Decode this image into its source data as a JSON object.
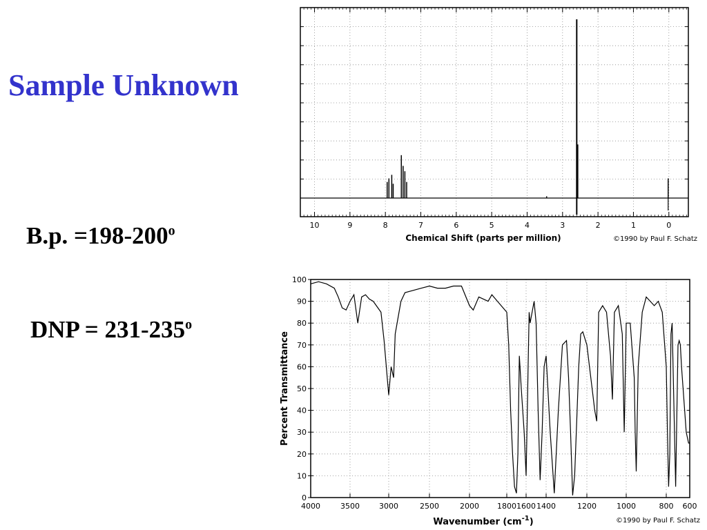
{
  "slide": {
    "title": "Sample Unknown",
    "bp_label": "B.p. =198-200",
    "bp_sup": "o",
    "dnp_label": "DNP = 231-235",
    "dnp_sup": "o"
  },
  "chart_data": [
    {
      "type": "line",
      "name": "nmr",
      "xlabel": "Chemical Shift (parts per million)",
      "ylabel": "",
      "credit": "©1990 by Paul F. Schatz",
      "x_ticks": [
        "10",
        "9",
        "8",
        "7",
        "6",
        "5",
        "4",
        "3",
        "2",
        "1",
        "0"
      ],
      "xlim": [
        10.4,
        -0.55
      ],
      "ylim": [
        -0.1,
        1.0
      ],
      "reversed_x": true,
      "grid": true,
      "peaks": [
        {
          "x": 7.95,
          "y": 0.09
        },
        {
          "x": 7.9,
          "y": 0.11
        },
        {
          "x": 7.82,
          "y": 0.13
        },
        {
          "x": 7.78,
          "y": 0.08
        },
        {
          "x": 7.55,
          "y": 0.24
        },
        {
          "x": 7.5,
          "y": 0.18
        },
        {
          "x": 7.45,
          "y": 0.15
        },
        {
          "x": 7.4,
          "y": 0.09
        },
        {
          "x": 3.45,
          "y": 0.01
        },
        {
          "x": 2.6,
          "y": 1.0
        },
        {
          "x": 2.57,
          "y": 0.3
        },
        {
          "x": 0.02,
          "y": 0.11
        }
      ]
    },
    {
      "type": "line",
      "name": "ir",
      "xlabel": "Wavenumber (cm-1)",
      "ylabel": "Percent Transmittance",
      "credit": "©1990 by Paul F. Schatz",
      "x_ticks": [
        "4000",
        "3500",
        "3000",
        "2500",
        "2000",
        "1800",
        "1600",
        "1400",
        "1200",
        "1000",
        "800",
        "600"
      ],
      "y_ticks": [
        "0",
        "10",
        "20",
        "30",
        "40",
        "50",
        "60",
        "70",
        "80",
        "90",
        "100"
      ],
      "ylim": [
        0,
        100
      ],
      "grid": true,
      "x": [
        4000,
        3900,
        3800,
        3700,
        3650,
        3600,
        3550,
        3500,
        3450,
        3400,
        3350,
        3300,
        3250,
        3200,
        3100,
        3060,
        3000,
        2970,
        2940,
        2920,
        2850,
        2800,
        2700,
        2600,
        2500,
        2400,
        2300,
        2200,
        2100,
        2000,
        1980,
        1950,
        1900,
        1880,
        1850,
        1800,
        1780,
        1760,
        1740,
        1720,
        1700,
        1685,
        1670,
        1650,
        1620,
        1600,
        1590,
        1580,
        1570,
        1560,
        1540,
        1520,
        1500,
        1480,
        1460,
        1440,
        1420,
        1400,
        1380,
        1360,
        1340,
        1320,
        1300,
        1290,
        1280,
        1270,
        1260,
        1250,
        1240,
        1230,
        1220,
        1200,
        1180,
        1160,
        1150,
        1140,
        1120,
        1100,
        1080,
        1070,
        1060,
        1040,
        1020,
        1010,
        1000,
        980,
        960,
        955,
        950,
        940,
        920,
        900,
        880,
        860,
        840,
        820,
        800,
        790,
        780,
        770,
        760,
        750,
        730,
        720,
        700,
        690,
        680,
        670,
        650,
        630,
        610,
        600
      ],
      "y": [
        98,
        99,
        98,
        96,
        92,
        87,
        86,
        90,
        93,
        80,
        92,
        93,
        91,
        90,
        85,
        72,
        47,
        60,
        55,
        75,
        90,
        94,
        95,
        96,
        97,
        96,
        96,
        97,
        97,
        88,
        86,
        92,
        90,
        93,
        90,
        85,
        70,
        40,
        20,
        5,
        2,
        20,
        65,
        50,
        30,
        10,
        35,
        60,
        85,
        80,
        85,
        90,
        80,
        40,
        8,
        30,
        60,
        65,
        30,
        2,
        40,
        70,
        72,
        55,
        30,
        1,
        10,
        35,
        60,
        75,
        76,
        70,
        55,
        40,
        35,
        85,
        88,
        85,
        65,
        45,
        85,
        88,
        75,
        30,
        80,
        80,
        55,
        30,
        12,
        60,
        85,
        92,
        90,
        88,
        90,
        85,
        60,
        30,
        5,
        20,
        75,
        80,
        30,
        5,
        70,
        72,
        70,
        60,
        45,
        30,
        25,
        25
      ]
    }
  ]
}
